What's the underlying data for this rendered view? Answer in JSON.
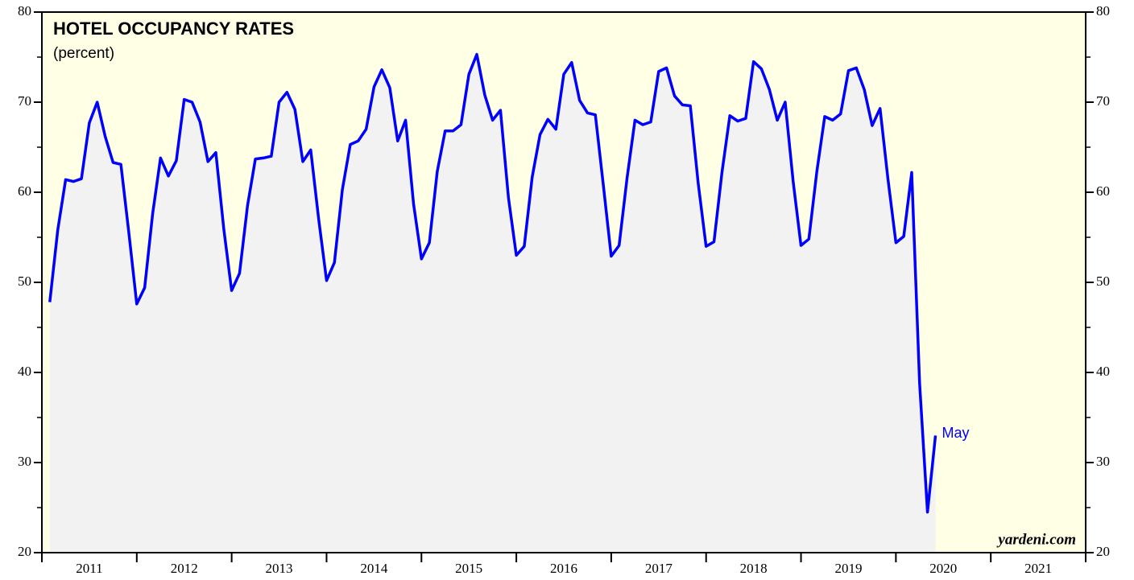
{
  "chart_data": {
    "type": "line",
    "title": "HOTEL OCCUPANCY RATES",
    "subtitle": "(percent)",
    "annotation": "May",
    "source": "yardeni.com",
    "categories": [
      "2011",
      "2012",
      "2013",
      "2014",
      "2015",
      "2016",
      "2017",
      "2018",
      "2019",
      "2020",
      "2021"
    ],
    "xlim": [
      2011,
      2022
    ],
    "xticks": [
      2011,
      2012,
      2013,
      2014,
      2015,
      2016,
      2017,
      2018,
      2019,
      2020,
      2021,
      2022
    ],
    "ylim": [
      20,
      80
    ],
    "yticks": [
      20,
      30,
      40,
      50,
      60,
      70,
      80
    ],
    "yticks_minor": [
      25,
      35,
      45,
      55,
      65,
      75
    ],
    "series": [
      {
        "color": "#0000ff",
        "area_color": "#f2f2f2",
        "x": [
          2011.083,
          2011.167,
          2011.25,
          2011.333,
          2011.417,
          2011.5,
          2011.583,
          2011.667,
          2011.75,
          2011.833,
          2011.917,
          2012,
          2012.083,
          2012.167,
          2012.25,
          2012.333,
          2012.417,
          2012.5,
          2012.583,
          2012.667,
          2012.75,
          2012.833,
          2012.917,
          2013,
          2013.083,
          2013.167,
          2013.25,
          2013.333,
          2013.417,
          2013.5,
          2013.583,
          2013.667,
          2013.75,
          2013.833,
          2013.917,
          2014,
          2014.083,
          2014.167,
          2014.25,
          2014.333,
          2014.417,
          2014.5,
          2014.583,
          2014.667,
          2014.75,
          2014.833,
          2014.917,
          2015,
          2015.083,
          2015.167,
          2015.25,
          2015.333,
          2015.417,
          2015.5,
          2015.583,
          2015.667,
          2015.75,
          2015.833,
          2015.917,
          2016,
          2016.083,
          2016.167,
          2016.25,
          2016.333,
          2016.417,
          2016.5,
          2016.583,
          2016.667,
          2016.75,
          2016.833,
          2016.917,
          2017,
          2017.083,
          2017.167,
          2017.25,
          2017.333,
          2017.417,
          2017.5,
          2017.583,
          2017.667,
          2017.75,
          2017.833,
          2017.917,
          2018,
          2018.083,
          2018.167,
          2018.25,
          2018.333,
          2018.417,
          2018.5,
          2018.583,
          2018.667,
          2018.75,
          2018.833,
          2018.917,
          2019,
          2019.083,
          2019.167,
          2019.25,
          2019.333,
          2019.417,
          2019.5,
          2019.583,
          2019.667,
          2019.75,
          2019.833,
          2019.917,
          2020,
          2020.083,
          2020.167,
          2020.25,
          2020.333,
          2020.417
        ],
        "values": [
          47.8,
          55.8,
          61.4,
          61.2,
          61.5,
          67.7,
          70.0,
          66.2,
          63.3,
          63.1,
          55.5,
          47.6,
          49.4,
          57.6,
          63.8,
          61.8,
          63.5,
          70.3,
          70.0,
          67.8,
          63.4,
          64.4,
          55.9,
          49.1,
          51.0,
          58.5,
          63.7,
          63.8,
          64.0,
          70.0,
          71.1,
          69.2,
          63.4,
          64.7,
          57.0,
          50.2,
          52.2,
          60.3,
          65.3,
          65.7,
          67.0,
          71.7,
          73.6,
          71.6,
          65.7,
          68.0,
          58.7,
          52.6,
          54.4,
          62.3,
          66.8,
          66.8,
          67.5,
          73.1,
          75.3,
          70.8,
          68.0,
          69.1,
          59.4,
          53.0,
          54.0,
          61.7,
          66.4,
          68.1,
          67.0,
          73.1,
          74.4,
          70.2,
          68.8,
          68.6,
          60.8,
          52.9,
          54.1,
          61.6,
          68.0,
          67.5,
          67.8,
          73.4,
          73.8,
          70.7,
          69.7,
          69.6,
          61.0,
          54.0,
          54.5,
          62.2,
          68.5,
          67.9,
          68.2,
          74.5,
          73.7,
          71.4,
          68.0,
          70.0,
          61.2,
          54.1,
          54.8,
          62.3,
          68.4,
          68.0,
          68.7,
          73.5,
          73.8,
          71.4,
          67.4,
          69.3,
          61.4,
          54.4,
          55.1,
          62.2,
          38.8,
          24.5,
          33.0
        ]
      }
    ],
    "plot_background": "#ffffe6"
  }
}
